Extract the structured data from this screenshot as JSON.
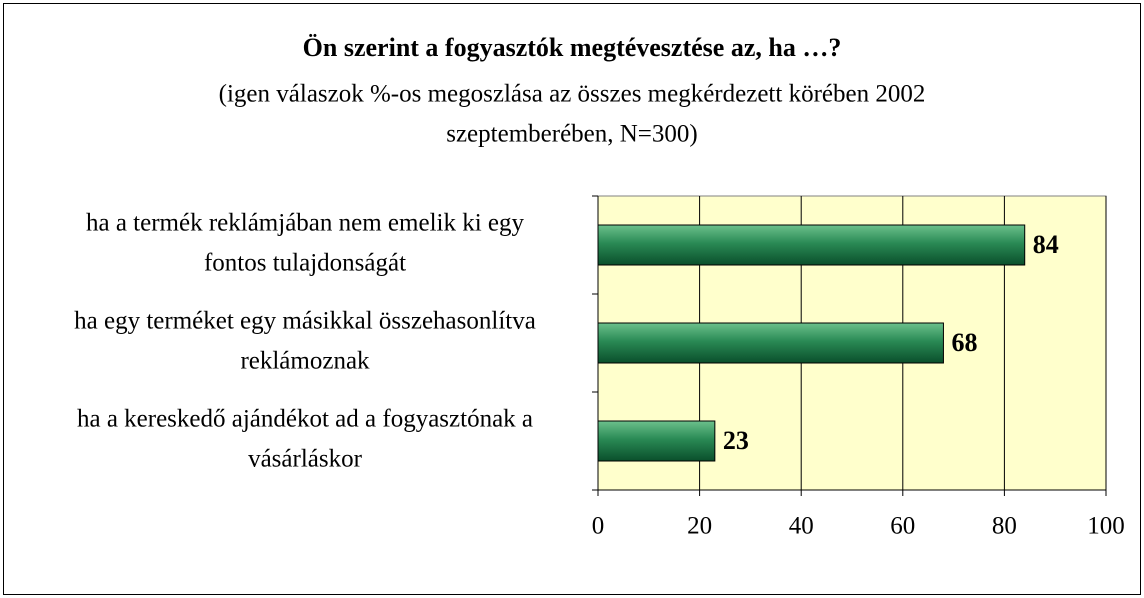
{
  "chart_data": {
    "type": "bar",
    "orientation": "horizontal",
    "title": "Ön szerint a fogyasztók megtévesztése az, ha …?",
    "subtitle": [
      "(igen válaszok %-os megoszlása az összes megkérdezett körében 2002",
      "szeptemberében, N=300)"
    ],
    "categories": [
      [
        "ha a termék reklámjában nem emelik ki egy",
        "fontos tulajdonságát"
      ],
      [
        "ha egy terméket egy másikkal összehasonlítva",
        "reklámoznak"
      ],
      [
        "ha a kereskedő ajándékot ad a fogyasztónak a",
        "vásárláskor"
      ]
    ],
    "values": [
      84,
      68,
      23
    ],
    "color": "#1e7a48",
    "xlim": [
      0,
      100
    ],
    "xticks": [
      0,
      20,
      40,
      60,
      80,
      100
    ],
    "grid": true
  }
}
